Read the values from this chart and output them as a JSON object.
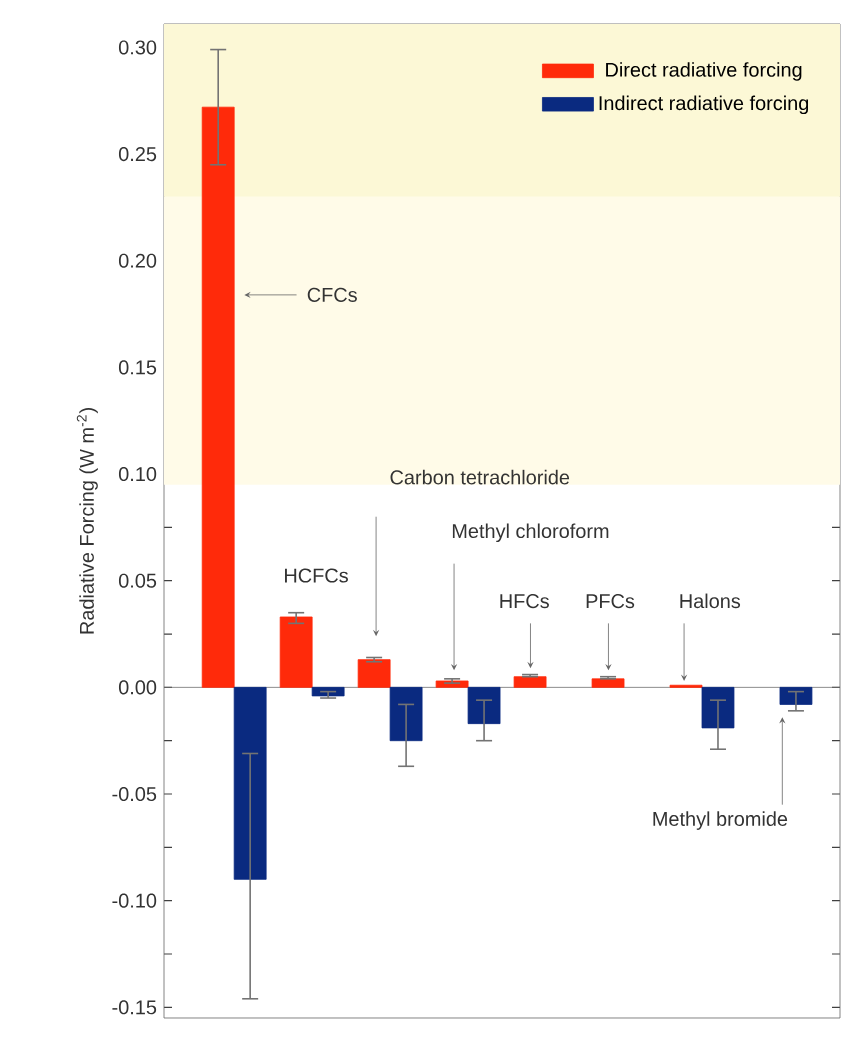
{
  "chart_data": {
    "type": "bar",
    "ylabel": "Radiative Forcing (W m$^{-2}$)",
    "categories": [
      null,
      null,
      null,
      null,
      null,
      null,
      null,
      null
    ],
    "series": [
      {
        "name": "Direct radiative forcing",
        "color": "#ff2a0a",
        "values": [
          0.272,
          0.033,
          0.013,
          0.003,
          0.005,
          0.004,
          0.001,
          null
        ],
        "errors": [
          [
            0.245,
            0.299
          ],
          [
            0.03,
            0.035
          ],
          [
            0.012,
            0.014
          ],
          [
            0.002,
            0.004
          ],
          [
            0.005,
            0.006
          ],
          [
            0.004,
            0.005
          ],
          null,
          null
        ]
      },
      {
        "name": "Indirect radiative forcing",
        "color": "#0a2a80",
        "values": [
          -0.09,
          -0.004,
          -0.025,
          -0.017,
          null,
          null,
          -0.019,
          -0.008
        ],
        "errors": [
          [
            -0.146,
            -0.031
          ],
          [
            -0.005,
            -0.002
          ],
          [
            -0.037,
            -0.008
          ],
          [
            -0.025,
            -0.006
          ],
          null,
          null,
          [
            -0.029,
            -0.006
          ],
          [
            -0.011,
            -0.002
          ]
        ]
      }
    ],
    "annotations": [
      "CFCs",
      "HCFCs",
      "Carbon tetrachloride",
      "Methyl chloroform",
      "HFCs",
      "PFCs",
      "Halons",
      "Methyl bromide"
    ],
    "bands": [
      {
        "axis": "y",
        "from": 0.095,
        "to": 0.23,
        "color": "#fffbe8"
      },
      {
        "axis": "y",
        "from": 0.23,
        "to": 0.311,
        "color": "#fcf8d6"
      }
    ],
    "ylim": [
      -0.155,
      0.311
    ],
    "yticks": [
      -0.15,
      {
        "value": -0.125,
        "label": null
      },
      {
        "value": -0.1,
        "label": "-0.10"
      },
      {
        "value": -0.075,
        "label": null
      },
      -0.05,
      {
        "value": -0.025,
        "label": null
      },
      {
        "value": 0,
        "label": "0.00"
      },
      {
        "value": 0.025,
        "label": null
      },
      0.05,
      {
        "value": 0.075,
        "label": null
      },
      {
        "value": 0.1,
        "label": "0.10"
      },
      {
        "value": 0.125,
        "label": null
      },
      0.15,
      {
        "value": 0.175,
        "label": null
      },
      {
        "value": 0.2,
        "label": "0.20"
      },
      {
        "value": 0.225,
        "label": null
      },
      0.25,
      {
        "value": 0.275,
        "label": null
      },
      {
        "value": 0.3,
        "label": "0.30"
      }
    ],
    "ref_lines": [
      {
        "axis": "y",
        "value": 0,
        "color": "#707070"
      }
    ],
    "legend": "top right",
    "grid": false
  }
}
